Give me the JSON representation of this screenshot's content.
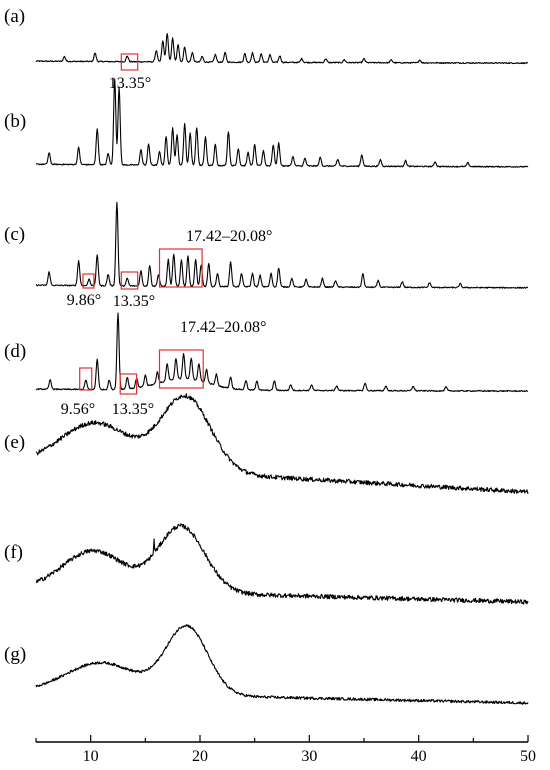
{
  "chart_data": {
    "type": "line",
    "title": "",
    "xlabel": "",
    "ylabel": "",
    "xlim": [
      5,
      50
    ],
    "x_ticks": [
      10,
      20,
      30,
      40,
      50
    ],
    "grid": false,
    "legend": "none",
    "line_color": "#000000",
    "highlight_color": "#e03030",
    "panels": [
      {
        "label": "(a)",
        "kind": "crystalline",
        "baseline": 0.06,
        "peaks": [
          [
            7.6,
            0.05
          ],
          [
            10.4,
            0.09
          ],
          [
            13.35,
            0.06
          ],
          [
            16.0,
            0.12
          ],
          [
            16.6,
            0.22
          ],
          [
            17.0,
            0.3
          ],
          [
            17.5,
            0.25
          ],
          [
            18.0,
            0.18
          ],
          [
            18.6,
            0.16
          ],
          [
            19.3,
            0.1
          ],
          [
            20.2,
            0.06
          ],
          [
            21.4,
            0.08
          ],
          [
            22.3,
            0.1
          ],
          [
            24.1,
            0.09
          ],
          [
            24.8,
            0.1
          ],
          [
            25.6,
            0.09
          ],
          [
            26.4,
            0.08
          ],
          [
            27.3,
            0.07
          ],
          [
            29.3,
            0.04
          ],
          [
            31.5,
            0.04
          ],
          [
            33.2,
            0.03
          ],
          [
            35.0,
            0.04
          ],
          [
            37.5,
            0.03
          ],
          [
            40.1,
            0.03
          ]
        ],
        "annotations": [
          {
            "text": "13.35°",
            "x_range": [
              12.8,
              14.3
            ]
          }
        ]
      },
      {
        "label": "(b)",
        "kind": "crystalline",
        "baseline": 0.08,
        "peaks": [
          [
            6.2,
            0.12
          ],
          [
            8.9,
            0.18
          ],
          [
            10.6,
            0.38
          ],
          [
            11.6,
            0.12
          ],
          [
            12.2,
            0.9
          ],
          [
            12.6,
            0.82
          ],
          [
            14.6,
            0.16
          ],
          [
            15.3,
            0.22
          ],
          [
            16.3,
            0.14
          ],
          [
            16.9,
            0.3
          ],
          [
            17.5,
            0.4
          ],
          [
            17.9,
            0.32
          ],
          [
            18.6,
            0.44
          ],
          [
            19.1,
            0.34
          ],
          [
            19.7,
            0.4
          ],
          [
            20.5,
            0.3
          ],
          [
            21.4,
            0.22
          ],
          [
            22.6,
            0.36
          ],
          [
            23.5,
            0.18
          ],
          [
            24.4,
            0.14
          ],
          [
            25.0,
            0.22
          ],
          [
            25.8,
            0.16
          ],
          [
            26.7,
            0.22
          ],
          [
            27.2,
            0.24
          ],
          [
            28.5,
            0.1
          ],
          [
            29.6,
            0.08
          ],
          [
            31.0,
            0.09
          ],
          [
            32.6,
            0.07
          ],
          [
            34.8,
            0.12
          ],
          [
            36.5,
            0.07
          ],
          [
            38.8,
            0.06
          ],
          [
            41.5,
            0.05
          ],
          [
            44.5,
            0.04
          ]
        ]
      },
      {
        "label": "(c)",
        "kind": "crystalline",
        "baseline": 0.08,
        "peaks": [
          [
            6.2,
            0.14
          ],
          [
            8.9,
            0.26
          ],
          [
            9.86,
            0.07
          ],
          [
            10.6,
            0.32
          ],
          [
            11.6,
            0.12
          ],
          [
            12.4,
            0.88
          ],
          [
            13.35,
            0.08
          ],
          [
            14.6,
            0.16
          ],
          [
            15.4,
            0.22
          ],
          [
            16.2,
            0.12
          ],
          [
            17.1,
            0.28
          ],
          [
            17.6,
            0.34
          ],
          [
            18.3,
            0.28
          ],
          [
            18.9,
            0.32
          ],
          [
            19.6,
            0.28
          ],
          [
            20.1,
            0.22
          ],
          [
            20.8,
            0.24
          ],
          [
            21.6,
            0.14
          ],
          [
            22.8,
            0.26
          ],
          [
            23.8,
            0.14
          ],
          [
            24.8,
            0.14
          ],
          [
            25.5,
            0.12
          ],
          [
            26.5,
            0.14
          ],
          [
            27.2,
            0.2
          ],
          [
            28.4,
            0.09
          ],
          [
            29.7,
            0.08
          ],
          [
            31.2,
            0.09
          ],
          [
            32.4,
            0.07
          ],
          [
            34.9,
            0.14
          ],
          [
            36.3,
            0.07
          ],
          [
            38.5,
            0.06
          ],
          [
            41.0,
            0.05
          ],
          [
            43.8,
            0.04
          ]
        ],
        "annotations": [
          {
            "text": "9.86°",
            "x_range": [
              9.3,
              10.3
            ]
          },
          {
            "text": "13.35°",
            "x_range": [
              12.8,
              14.3
            ]
          },
          {
            "text": "17.42–20.08°",
            "x_range": [
              16.3,
              20.2
            ]
          }
        ]
      },
      {
        "label": "(d)",
        "kind": "semi-crystalline",
        "baseline": 0.06,
        "peaks": [
          [
            6.3,
            0.1
          ],
          [
            9.56,
            0.1
          ],
          [
            10.6,
            0.32
          ],
          [
            11.7,
            0.1
          ],
          [
            12.5,
            0.8
          ],
          [
            13.35,
            0.12
          ],
          [
            14.2,
            0.1
          ],
          [
            15.0,
            0.12
          ],
          [
            16.1,
            0.12
          ],
          [
            17.0,
            0.18
          ],
          [
            17.8,
            0.22
          ],
          [
            18.5,
            0.26
          ],
          [
            19.2,
            0.22
          ],
          [
            19.9,
            0.18
          ],
          [
            20.6,
            0.14
          ],
          [
            21.5,
            0.12
          ],
          [
            22.8,
            0.12
          ],
          [
            24.2,
            0.1
          ],
          [
            25.2,
            0.1
          ],
          [
            26.8,
            0.1
          ],
          [
            28.3,
            0.06
          ],
          [
            30.2,
            0.06
          ],
          [
            32.5,
            0.05
          ],
          [
            35.1,
            0.08
          ],
          [
            37.0,
            0.05
          ],
          [
            39.5,
            0.05
          ],
          [
            42.5,
            0.04
          ]
        ],
        "hump": {
          "center": 18.5,
          "width": 3.2,
          "height": 0.12
        },
        "annotations": [
          {
            "text": "9.56°",
            "x_range": [
              9.0,
              10.1
            ]
          },
          {
            "text": "13.35°",
            "x_range": [
              12.7,
              14.2
            ]
          },
          {
            "text": "17.42–20.08°",
            "x_range": [
              16.3,
              20.3
            ]
          }
        ]
      },
      {
        "label": "(e)",
        "kind": "amorphous",
        "humps": [
          [
            10.5,
            4.5,
            0.4
          ],
          [
            18.7,
            3.2,
            0.68
          ]
        ],
        "start": 0.26,
        "end": 0.0,
        "noise": 0.02
      },
      {
        "label": "(f)",
        "kind": "amorphous",
        "humps": [
          [
            10.3,
            4.0,
            0.36
          ],
          [
            18.3,
            3.0,
            0.6
          ]
        ],
        "start": 0.12,
        "end": 0.0,
        "noise": 0.02,
        "spike": [
          15.8,
          0.12
        ]
      },
      {
        "label": "(g)",
        "kind": "amorphous",
        "humps": [
          [
            11.0,
            4.6,
            0.28
          ],
          [
            18.8,
            2.7,
            0.62
          ]
        ],
        "start": 0.1,
        "end": 0.0,
        "noise": 0.012
      }
    ]
  }
}
